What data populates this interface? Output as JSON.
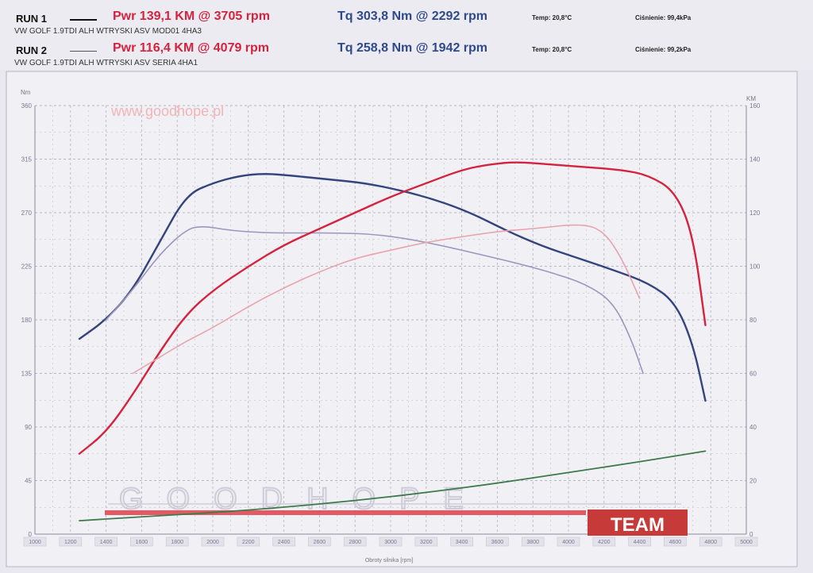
{
  "runs": [
    {
      "label": "RUN 1",
      "description": "VW GOLF 1.9TDI ALH WTRYSKI ASV MOD01 4HA3",
      "power_text": "Pwr  139,1 KM @ 3705 rpm",
      "torque_text": "Tq  303,8 Nm @ 2292 rpm",
      "temp_text": "Temp: 20,8°C",
      "pressure_text": "Ciśnienie: 99,4kPa"
    },
    {
      "label": "RUN 2",
      "description": "VW GOLF 1.9TDI ALH WTRYSKI ASV SERIA 4HA1",
      "power_text": "Pwr  116,4 KM @ 4079 rpm",
      "torque_text": "Tq  258,8 Nm @ 1942 rpm",
      "temp_text": "Temp: 20,8°C",
      "pressure_text": "Ciśnienie: 99,2kPa"
    }
  ],
  "watermark": "www.goodhope.pl",
  "logo_text": "GOODHOPE",
  "team_label": "TEAM",
  "colors": {
    "power_run1": "#d4233f",
    "power_run2": "#e8a3ad",
    "torque_run1": "#34447d",
    "torque_run2": "#9b96bd",
    "loss": "#3c7a4b",
    "grid": "#b9b6c8",
    "team_bg": "#c73a3a"
  },
  "chart_data": {
    "type": "line",
    "xlabel": "Obroty silnika [rpm]",
    "ylabel_left": "Nm",
    "ylabel_right": "KM",
    "xlim": [
      1000,
      5000
    ],
    "ylim_left": [
      0,
      360
    ],
    "ylim_right": [
      0,
      160
    ],
    "x_ticks": [
      1000,
      1200,
      1400,
      1600,
      1800,
      2000,
      2200,
      2400,
      2600,
      2800,
      3000,
      3200,
      3400,
      3600,
      3800,
      4000,
      4200,
      4400,
      4600,
      4800,
      5000
    ],
    "y_ticks_left": [
      0,
      45,
      90,
      135,
      180,
      225,
      270,
      315,
      360
    ],
    "y_ticks_right": [
      0,
      20,
      40,
      60,
      80,
      100,
      120,
      140,
      160
    ],
    "grid": true,
    "series": [
      {
        "axis": "left",
        "x": [
          1250,
          1400,
          1550,
          1700,
          1850,
          2000,
          2150,
          2292,
          2450,
          2650,
          2850,
          3050,
          3250,
          3450,
          3650,
          3850,
          4050,
          4250,
          4450,
          4600,
          4700,
          4770
        ],
        "values": [
          164,
          180,
          205,
          245,
          285,
          295,
          301,
          303,
          301,
          298,
          295,
          289,
          281,
          270,
          255,
          242,
          232,
          222,
          211,
          195,
          160,
          112
        ]
      },
      {
        "axis": "left",
        "x": [
          1400,
          1550,
          1700,
          1850,
          1942,
          2100,
          2300,
          2500,
          2700,
          2900,
          3100,
          3300,
          3500,
          3700,
          3900,
          4100,
          4250,
          4350,
          4420
        ],
        "values": [
          180,
          205,
          235,
          256,
          259,
          255,
          253,
          253,
          253,
          252,
          248,
          242,
          235,
          228,
          220,
          210,
          195,
          165,
          135
        ]
      },
      {
        "axis": "right",
        "x": [
          1250,
          1400,
          1550,
          1700,
          1850,
          2000,
          2200,
          2400,
          2600,
          2800,
          3000,
          3200,
          3400,
          3550,
          3705,
          3900,
          4100,
          4300,
          4450,
          4600,
          4700,
          4770
        ],
        "values": [
          30,
          38,
          52,
          68,
          82,
          91,
          100,
          108,
          114,
          120,
          126,
          131,
          136,
          138,
          139,
          138,
          137,
          136,
          134,
          128,
          112,
          78
        ]
      },
      {
        "axis": "right",
        "x": [
          1550,
          1700,
          1850,
          2000,
          2200,
          2400,
          2600,
          2800,
          3000,
          3200,
          3400,
          3600,
          3800,
          4079,
          4200,
          4300,
          4400
        ],
        "values": [
          60,
          66,
          72,
          77,
          85,
          92,
          98,
          103,
          106,
          109,
          111,
          113,
          114,
          116,
          113,
          103,
          88
        ]
      },
      {
        "axis": "right",
        "x": [
          1250,
          1600,
          2000,
          2400,
          2800,
          3200,
          3600,
          4000,
          4400,
          4770
        ],
        "values": [
          5,
          6.5,
          8,
          10,
          12.5,
          15.5,
          19,
          23,
          27,
          31
        ]
      }
    ]
  }
}
